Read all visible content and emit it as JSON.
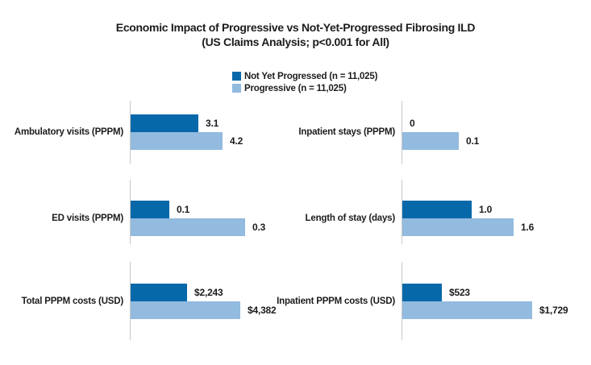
{
  "title": {
    "line1": "Economic Impact of Progressive vs Not-Yet-Progressed Fibrosing ILD",
    "line2": "(US Claims Analysis; p<0.001 for All)"
  },
  "chart_data": {
    "type": "bar",
    "orientation": "horizontal",
    "layout": "2 columns x 3 rows small multiples, each panel independently scaled",
    "legend_position": "top-center",
    "axis_color": "#C8C8C8",
    "series": [
      {
        "name": "Not Yet Progressed (n = 11,025)",
        "color": "#0768A9"
      },
      {
        "name": "Progressive (n = 11,025)",
        "color": "#93BADF"
      }
    ],
    "panels": [
      {
        "category": "Ambulatory visits (PPPM)",
        "values": [
          3.1,
          4.2
        ],
        "value_labels": [
          "3.1",
          "4.2"
        ],
        "xmax": 7.0
      },
      {
        "category": "Inpatient stays (PPPM)",
        "values": [
          0,
          0.1
        ],
        "value_labels": [
          "0",
          "0.1"
        ],
        "xmax": 0.27
      },
      {
        "category": "ED visits (PPPM)",
        "values": [
          0.1,
          0.3
        ],
        "value_labels": [
          "0.1",
          "0.3"
        ],
        "xmax": 0.4
      },
      {
        "category": "Length of stay (days)",
        "values": [
          1.0,
          1.6
        ],
        "value_labels": [
          "1.0",
          "1.6"
        ],
        "xmax": 2.2
      },
      {
        "category": "Total PPPM costs (USD)",
        "values": [
          2243,
          4382
        ],
        "value_labels": [
          "$2,243",
          "$4,382"
        ],
        "xmax": 6100
      },
      {
        "category": "Inpatient PPPM costs (USD)",
        "values": [
          523,
          1729
        ],
        "value_labels": [
          "$523",
          "$1,729"
        ],
        "xmax": 2040
      }
    ]
  }
}
